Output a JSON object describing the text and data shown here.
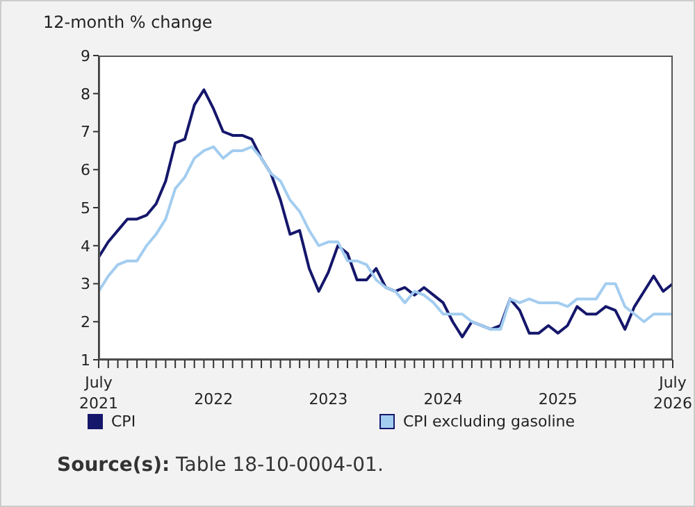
{
  "chart_data": {
    "type": "line",
    "ylabel": "12-month % change",
    "x": [
      "2021-07",
      "2021-08",
      "2021-09",
      "2021-10",
      "2021-11",
      "2021-12",
      "2022-01",
      "2022-02",
      "2022-03",
      "2022-04",
      "2022-05",
      "2022-06",
      "2022-07",
      "2022-08",
      "2022-09",
      "2022-10",
      "2022-11",
      "2022-12",
      "2023-01",
      "2023-02",
      "2023-03",
      "2023-04",
      "2023-05",
      "2023-06",
      "2023-07",
      "2023-08",
      "2023-09",
      "2023-10",
      "2023-11",
      "2023-12",
      "2024-01",
      "2024-02",
      "2024-03",
      "2024-04",
      "2024-05",
      "2024-06",
      "2024-07",
      "2024-08",
      "2024-09",
      "2024-10",
      "2024-11",
      "2024-12",
      "2025-01",
      "2025-02",
      "2025-03",
      "2025-04",
      "2025-05",
      "2025-06",
      "2025-07",
      "2025-08",
      "2025-09",
      "2025-10",
      "2025-11",
      "2025-12",
      "2026-01",
      "2026-02",
      "2026-03",
      "2026-04",
      "2026-05",
      "2026-06",
      "2026-07"
    ],
    "series": [
      {
        "name": "CPI",
        "color": "#15176b",
        "values": [
          3.7,
          4.1,
          4.4,
          4.7,
          4.7,
          4.8,
          5.1,
          5.7,
          6.7,
          6.8,
          7.7,
          8.1,
          7.6,
          7.0,
          6.9,
          6.9,
          6.8,
          6.3,
          5.9,
          5.2,
          4.3,
          4.4,
          3.4,
          2.8,
          3.3,
          4.0,
          3.8,
          3.1,
          3.1,
          3.4,
          2.9,
          2.8,
          2.9,
          2.7,
          2.9,
          2.7,
          2.5,
          2.0,
          1.6,
          2.0,
          1.9,
          1.8,
          1.9,
          2.6,
          2.3,
          1.7,
          1.7,
          1.9,
          1.7,
          1.9,
          2.4,
          2.2,
          2.2,
          2.4,
          2.3,
          1.8,
          2.4,
          2.8,
          3.2,
          2.8,
          3.0
        ]
      },
      {
        "name": "CPI excluding gasoline",
        "color": "#a3cdf0",
        "values": [
          2.8,
          3.2,
          3.5,
          3.6,
          3.6,
          4.0,
          4.3,
          4.7,
          5.5,
          5.8,
          6.3,
          6.5,
          6.6,
          6.3,
          6.5,
          6.5,
          6.6,
          6.3,
          5.9,
          5.7,
          5.2,
          4.9,
          4.4,
          4.0,
          4.1,
          4.1,
          3.6,
          3.6,
          3.5,
          3.1,
          2.9,
          2.8,
          2.5,
          2.8,
          2.7,
          2.5,
          2.2,
          2.2,
          2.2,
          2.0,
          1.9,
          1.8,
          1.8,
          2.6,
          2.5,
          2.6,
          2.5,
          2.5,
          2.5,
          2.4,
          2.6,
          2.6,
          2.6,
          3.0,
          3.0,
          2.4,
          2.2,
          2.0,
          2.2,
          2.2,
          2.2
        ]
      }
    ],
    "xlim": [
      "2021-07",
      "2026-07"
    ],
    "xticks": [
      {
        "value": "2021-07",
        "label": "July 2021"
      },
      {
        "value": "2022-07",
        "label": "2022"
      },
      {
        "value": "2023-07",
        "label": "2023"
      },
      {
        "value": "2024-07",
        "label": "2024"
      },
      {
        "value": "2025-07",
        "label": "2025"
      },
      {
        "value": "2026-07",
        "label": "July 2026"
      }
    ],
    "ylim": [
      1,
      9
    ],
    "yticks": [
      1,
      2,
      3,
      4,
      5,
      6,
      7,
      8,
      9
    ],
    "grid": false,
    "legend": "bottom",
    "marker": "none",
    "line_style": "solid",
    "annotations": [
      "Source(s): Table 18-10-0004-01."
    ]
  }
}
